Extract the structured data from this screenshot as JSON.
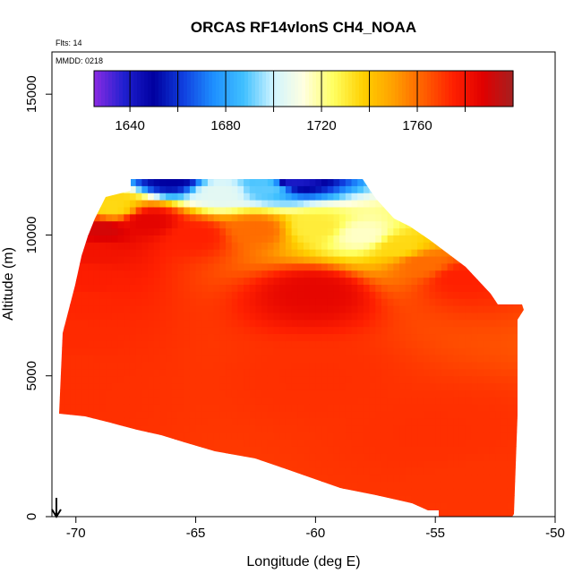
{
  "chart_data": {
    "type": "heatmap",
    "title": "ORCAS RF14vlonS CH4_NOAA",
    "xlabel": "Longitude (deg E)",
    "ylabel": "Altitude (m)",
    "xlim": [
      -71,
      -50
    ],
    "ylim": [
      0,
      16500
    ],
    "x_ticks": [
      -70,
      -65,
      -60,
      -55,
      -50
    ],
    "x_tick_labels": [
      "-70",
      "-65",
      "-60",
      "-55",
      "-50"
    ],
    "y_ticks": [
      0,
      5000,
      10000,
      15000
    ],
    "y_tick_labels": [
      "0",
      "5000",
      "10000",
      "15000"
    ],
    "flights_label": "Flts: 14",
    "date_label": "MMDD: 0218",
    "colorbar": {
      "range": [
        1625,
        1800
      ],
      "tick_values": [
        1640,
        1680,
        1720,
        1760
      ],
      "tick_labels": [
        "1640",
        "1680",
        "1720",
        "1760"
      ],
      "division_values": [
        1640,
        1660,
        1680,
        1700,
        1720,
        1740,
        1760,
        1780
      ],
      "colors": [
        "#8a2be2",
        "#2020d0",
        "#0000a0",
        "#1040e0",
        "#1e90ff",
        "#40c0ff",
        "#d0f4ff",
        "#ffffe0",
        "#ffff60",
        "#ffd000",
        "#ffa000",
        "#ff6000",
        "#ff2000",
        "#e00000",
        "#a52020"
      ]
    },
    "field_cells": [
      {
        "lon": -70.7,
        "alt": 4000,
        "ch4": 1772
      },
      {
        "lon": -70.5,
        "alt": 5200,
        "ch4": 1772
      },
      {
        "lon": -70.2,
        "alt": 6500,
        "ch4": 1773
      },
      {
        "lon": -69.8,
        "alt": 7600,
        "ch4": 1774
      },
      {
        "lon": -69.5,
        "alt": 8500,
        "ch4": 1776
      },
      {
        "lon": -69.2,
        "alt": 9400,
        "ch4": 1780
      },
      {
        "lon": -68.9,
        "alt": 10200,
        "ch4": 1790
      },
      {
        "lon": -68.5,
        "alt": 11000,
        "ch4": 1735
      },
      {
        "lon": -67.0,
        "alt": 10500,
        "ch4": 1786
      },
      {
        "lon": -65.0,
        "alt": 10000,
        "ch4": 1775
      },
      {
        "lon": -62.5,
        "alt": 10200,
        "ch4": 1760
      },
      {
        "lon": -60.0,
        "alt": 10300,
        "ch4": 1730
      },
      {
        "lon": -58.0,
        "alt": 10000,
        "ch4": 1715
      },
      {
        "lon": -56.5,
        "alt": 9600,
        "ch4": 1735
      },
      {
        "lon": -55.5,
        "alt": 9000,
        "ch4": 1760
      },
      {
        "lon": -54.0,
        "alt": 8500,
        "ch4": 1775
      },
      {
        "lon": -64.0,
        "alt": 11500,
        "ch4": 1705
      },
      {
        "lon": -62.0,
        "alt": 11700,
        "ch4": 1690
      },
      {
        "lon": -66.0,
        "alt": 12000,
        "ch4": 1650
      },
      {
        "lon": -61.0,
        "alt": 12000,
        "ch4": 1640
      },
      {
        "lon": -60.0,
        "alt": 8000,
        "ch4": 1785
      },
      {
        "lon": -60.0,
        "alt": 5000,
        "ch4": 1772
      },
      {
        "lon": -55.0,
        "alt": 3000,
        "ch4": 1772
      },
      {
        "lon": -53.0,
        "alt": 1000,
        "ch4": 1771
      }
    ]
  }
}
